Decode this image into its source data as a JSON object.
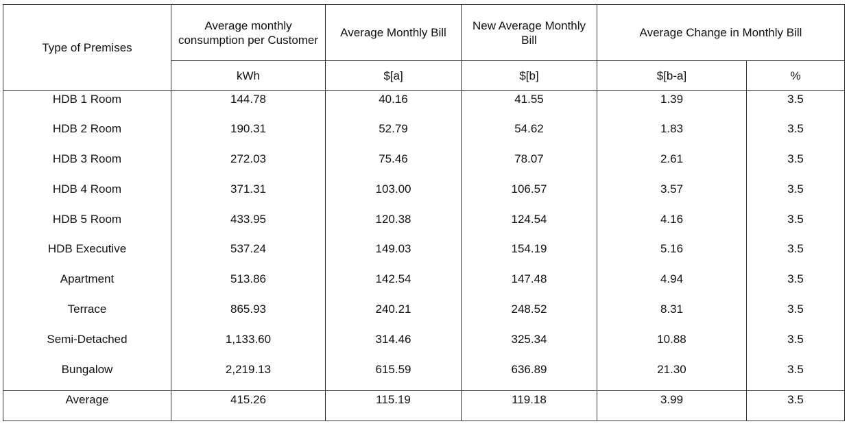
{
  "header": {
    "row1": [
      "Type of Premises",
      "Average monthly consumption per Customer",
      "Average Monthly Bill",
      "New Average Monthly Bill",
      "Average Change in Monthly Bill"
    ],
    "row2": [
      "kWh",
      "$[a]",
      "$[b]",
      "$[b-a]",
      "%"
    ]
  },
  "rows": [
    [
      "HDB 1 Room",
      "144.78",
      "40.16",
      "41.55",
      "1.39",
      "3.5"
    ],
    [
      "HDB 2 Room",
      "190.31",
      "52.79",
      "54.62",
      "1.83",
      "3.5"
    ],
    [
      "HDB 3 Room",
      "272.03",
      "75.46",
      "78.07",
      "2.61",
      "3.5"
    ],
    [
      "HDB 4 Room",
      "371.31",
      "103.00",
      "106.57",
      "3.57",
      "3.5"
    ],
    [
      "HDB 5 Room",
      "433.95",
      "120.38",
      "124.54",
      "4.16",
      "3.5"
    ],
    [
      "HDB Executive",
      "537.24",
      "149.03",
      "154.19",
      "5.16",
      "3.5"
    ],
    [
      "Apartment",
      "513.86",
      "142.54",
      "147.48",
      "4.94",
      "3.5"
    ],
    [
      "Terrace",
      "865.93",
      "240.21",
      "248.52",
      "8.31",
      "3.5"
    ],
    [
      "Semi-Detached",
      "1,133.60",
      "314.46",
      "325.34",
      "10.88",
      "3.5"
    ],
    [
      "Bungalow",
      "2,219.13",
      "615.59",
      "636.89",
      "21.30",
      "3.5"
    ]
  ],
  "average": [
    "Average",
    "415.26",
    "115.19",
    "119.18",
    "3.99",
    "3.5"
  ]
}
